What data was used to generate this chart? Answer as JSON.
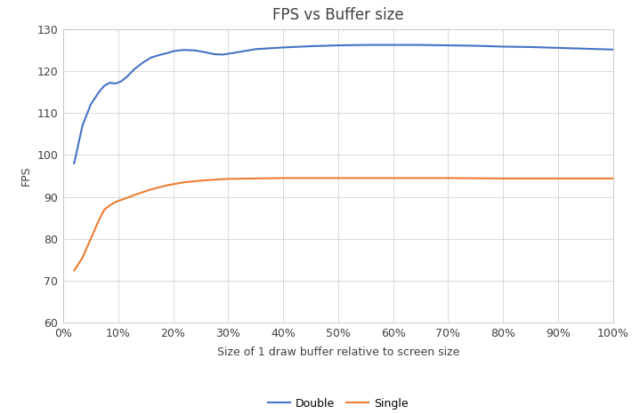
{
  "title": "FPS vs Buffer size",
  "xlabel": "Size of 1 draw buffer relative to screen size",
  "ylabel": "FPS",
  "ylim": [
    60,
    130
  ],
  "xlim": [
    0,
    1.0
  ],
  "xtick_positions": [
    0,
    0.1,
    0.2,
    0.3,
    0.4,
    0.5,
    0.6,
    0.7,
    0.8,
    0.9,
    1.0
  ],
  "xtick_labels": [
    "0%",
    "10%",
    "20%",
    "30%",
    "40%",
    "50%",
    "60%",
    "70%",
    "80%",
    "90%",
    "100%"
  ],
  "ytick_positions": [
    60,
    70,
    80,
    90,
    100,
    110,
    120,
    130
  ],
  "double_x": [
    0.02,
    0.035,
    0.05,
    0.065,
    0.075,
    0.085,
    0.095,
    0.105,
    0.115,
    0.13,
    0.145,
    0.16,
    0.175,
    0.19,
    0.2,
    0.21,
    0.22,
    0.24,
    0.26,
    0.275,
    0.29,
    0.31,
    0.35,
    0.4,
    0.45,
    0.5,
    0.55,
    0.6,
    0.65,
    0.7,
    0.75,
    0.8,
    0.85,
    0.9,
    0.95,
    1.0
  ],
  "double_y": [
    98,
    107,
    112,
    115,
    116.5,
    117.2,
    117.0,
    117.5,
    118.5,
    120.5,
    122.0,
    123.2,
    123.8,
    124.3,
    124.7,
    124.9,
    125.0,
    124.9,
    124.4,
    124.0,
    123.9,
    124.3,
    125.2,
    125.6,
    125.9,
    126.1,
    126.2,
    126.2,
    126.2,
    126.1,
    126.0,
    125.8,
    125.7,
    125.5,
    125.3,
    125.1
  ],
  "single_x": [
    0.02,
    0.035,
    0.05,
    0.065,
    0.075,
    0.085,
    0.095,
    0.11,
    0.13,
    0.16,
    0.19,
    0.22,
    0.26,
    0.3,
    0.35,
    0.4,
    0.5,
    0.6,
    0.7,
    0.8,
    0.9,
    1.0
  ],
  "single_y": [
    72.5,
    75.5,
    80.0,
    84.5,
    87.0,
    88.0,
    88.8,
    89.5,
    90.5,
    91.8,
    92.8,
    93.5,
    94.0,
    94.3,
    94.4,
    94.5,
    94.5,
    94.5,
    94.5,
    94.4,
    94.4,
    94.4
  ],
  "double_color": "#4472C4",
  "single_color": "#ED7D31",
  "line_width": 1.5,
  "grid_color": "#D3D3D3",
  "background_color": "#FFFFFF",
  "legend_labels": [
    "Double",
    "Single"
  ],
  "title_fontsize": 12,
  "label_fontsize": 9,
  "tick_fontsize": 9,
  "legend_fontsize": 9
}
